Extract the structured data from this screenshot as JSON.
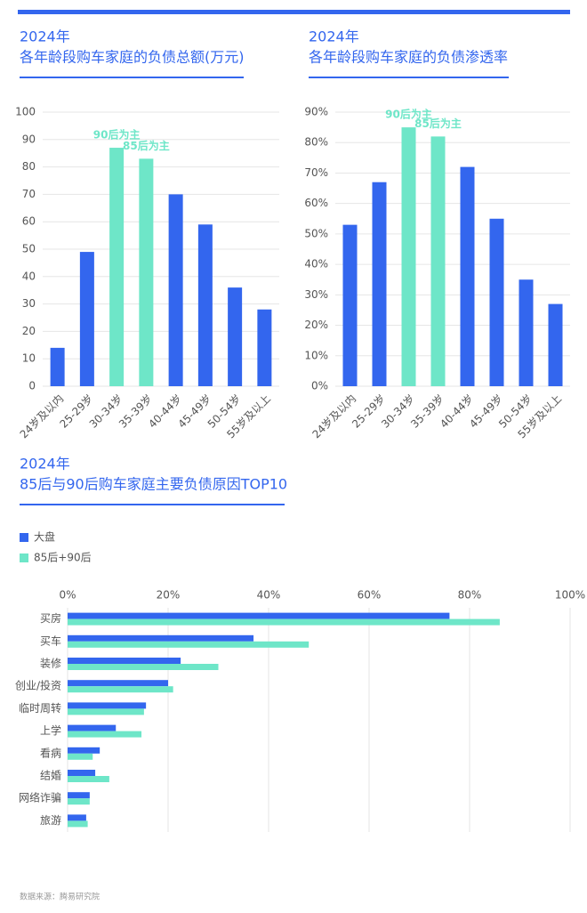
{
  "chart_data": [
    {
      "type": "bar",
      "title": "2024年",
      "subtitle": "各年龄段购车家庭的负债总额(万元)",
      "categories": [
        "24岁及以内",
        "25-29岁",
        "30-34岁",
        "35-39岁",
        "40-44岁",
        "45-49岁",
        "50-54岁",
        "55岁及以上"
      ],
      "values": [
        14,
        49,
        87,
        83,
        70,
        59,
        36,
        28
      ],
      "colors": [
        "#3366ee",
        "#3366ee",
        "#6ee6c8",
        "#6ee6c8",
        "#3366ee",
        "#3366ee",
        "#3366ee",
        "#3366ee"
      ],
      "ylim": [
        0,
        100
      ],
      "yticks": [
        0,
        10,
        20,
        30,
        40,
        50,
        60,
        70,
        80,
        90,
        100
      ],
      "grid": true,
      "annotations": [
        {
          "category": "30-34岁",
          "text": "90后为主"
        },
        {
          "category": "35-39岁",
          "text": "85后为主"
        }
      ],
      "annotation_color": "#6ee6c8"
    },
    {
      "type": "bar",
      "title": "2024年",
      "subtitle": "各年龄段购车家庭的负债渗透率",
      "categories": [
        "24岁及以内",
        "25-29岁",
        "30-34岁",
        "35-39岁",
        "40-44岁",
        "45-49岁",
        "50-54岁",
        "55岁及以上"
      ],
      "values": [
        53,
        67,
        85,
        82,
        72,
        55,
        35,
        27
      ],
      "colors": [
        "#3366ee",
        "#3366ee",
        "#6ee6c8",
        "#6ee6c8",
        "#3366ee",
        "#3366ee",
        "#3366ee",
        "#3366ee"
      ],
      "ylim": [
        0,
        90
      ],
      "yticks": [
        {
          "value": 0,
          "label": "0%"
        },
        {
          "value": 10,
          "label": "10%"
        },
        {
          "value": 20,
          "label": "20%"
        },
        {
          "value": 30,
          "label": "30%"
        },
        {
          "value": 40,
          "label": "40%"
        },
        {
          "value": 50,
          "label": "50%"
        },
        {
          "value": 60,
          "label": "60%"
        },
        {
          "value": 70,
          "label": "70%"
        },
        {
          "value": 80,
          "label": "80%"
        },
        {
          "value": 90,
          "label": "90%"
        }
      ],
      "grid": true,
      "annotations": [
        {
          "category": "30-34岁",
          "text": "90后为主"
        },
        {
          "category": "35-39岁",
          "text": "85后为主"
        }
      ],
      "annotation_color": "#6ee6c8"
    },
    {
      "type": "barh",
      "title": "2024年",
      "subtitle": "85后与90后购车家庭主要负债原因TOP10",
      "categories": [
        "买房",
        "买车",
        "装修",
        "创业/投资",
        "临时周转",
        "上学",
        "看病",
        "结婚",
        "网络诈骗",
        "旅游"
      ],
      "series": [
        {
          "name": "大盘",
          "color": "#3366ee",
          "values": [
            76,
            37,
            22.5,
            20,
            15.6,
            9.6,
            6.4,
            5.5,
            4.4,
            3.7
          ]
        },
        {
          "name": "85后+90后",
          "color": "#6ee6c8",
          "values": [
            86,
            48,
            30,
            21,
            15.2,
            14.7,
            5,
            8.3,
            4.4,
            4
          ]
        }
      ],
      "xlim": [
        0,
        100
      ],
      "xticks": [
        {
          "value": 0,
          "label": "0%"
        },
        {
          "value": 20,
          "label": "20%"
        },
        {
          "value": 40,
          "label": "40%"
        },
        {
          "value": 60,
          "label": "60%"
        },
        {
          "value": 80,
          "label": "80%"
        },
        {
          "value": 100,
          "label": "100%"
        }
      ],
      "grid": true
    }
  ],
  "source": "数据来源：腾易研究院"
}
